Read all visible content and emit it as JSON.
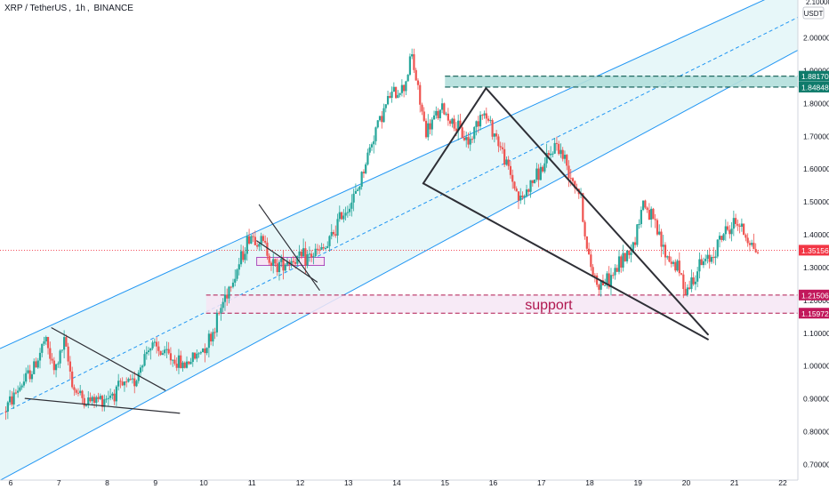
{
  "header": {
    "symbol": "XRP / TetherUS",
    "interval": "1h",
    "exchange": "BINANCE",
    "sep1": ",",
    "sep2": ","
  },
  "colors": {
    "up": "#26a69a",
    "down": "#ef5350",
    "channel": "#2196f3",
    "channel_fill": "#e3f6f8",
    "resistance_fill": "#b2dfdb",
    "resistance_border": "#0b5a51",
    "support_fill": "#f6e6f4",
    "support_border": "#b0174f",
    "pattern_line": "#2e2f36",
    "axis_text": "#131722",
    "last_price": "#f23645",
    "res_label_bg": "#0f7b6b",
    "sup_label_bg": "#c2185b"
  },
  "axis": {
    "currency": "USDT",
    "top_clip_label": "2.10000"
  },
  "labels": {
    "support": "support"
  },
  "chart_data": {
    "type": "candlestick",
    "symbol": "XRP/USDT",
    "timeframe": "1h",
    "ylim": [
      0.68,
      2.12
    ],
    "xlim": [
      5.9,
      22.3
    ],
    "y_ticks": [
      "0.70000",
      "0.80000",
      "0.90000",
      "1.00000",
      "1.10000",
      "1.20000",
      "1.30000",
      "1.40000",
      "1.50000",
      "1.60000",
      "1.70000",
      "1.80000",
      "1.90000",
      "2.00000"
    ],
    "x_ticks": [
      "6",
      "7",
      "8",
      "9",
      "10",
      "11",
      "12",
      "13",
      "14",
      "15",
      "16",
      "17",
      "18",
      "19",
      "20",
      "21",
      "22"
    ],
    "price_levels": [
      {
        "name": "resistance-top",
        "value": 1.8817,
        "label": "1.88170"
      },
      {
        "name": "resistance-bottom",
        "value": 1.84848,
        "label": "1.84848"
      },
      {
        "name": "last-price",
        "value": 1.35156,
        "label": "1.35156"
      },
      {
        "name": "support-top",
        "value": 1.21506,
        "label": "1.21506"
      },
      {
        "name": "support-bottom",
        "value": 1.15972,
        "label": "1.15972"
      }
    ],
    "anchors": [
      [
        5.9,
        0.86
      ],
      [
        6.2,
        0.93
      ],
      [
        6.55,
        1.0
      ],
      [
        6.75,
        1.08
      ],
      [
        6.95,
        0.98
      ],
      [
        7.15,
        1.07
      ],
      [
        7.35,
        0.93
      ],
      [
        7.6,
        0.89
      ],
      [
        7.95,
        0.9
      ],
      [
        8.3,
        0.93
      ],
      [
        8.6,
        0.95
      ],
      [
        8.9,
        1.06
      ],
      [
        9.3,
        1.03
      ],
      [
        9.6,
        1.0
      ],
      [
        9.9,
        1.03
      ],
      [
        10.2,
        1.09
      ],
      [
        10.5,
        1.22
      ],
      [
        10.75,
        1.3
      ],
      [
        11.0,
        1.4
      ],
      [
        11.3,
        1.37
      ],
      [
        11.5,
        1.3
      ],
      [
        11.75,
        1.32
      ],
      [
        12.2,
        1.33
      ],
      [
        12.6,
        1.36
      ],
      [
        12.9,
        1.46
      ],
      [
        13.2,
        1.52
      ],
      [
        13.6,
        1.72
      ],
      [
        13.9,
        1.82
      ],
      [
        14.2,
        1.85
      ],
      [
        14.35,
        1.95
      ],
      [
        14.5,
        1.82
      ],
      [
        14.65,
        1.71
      ],
      [
        14.85,
        1.76
      ],
      [
        15.0,
        1.78
      ],
      [
        15.3,
        1.72
      ],
      [
        15.55,
        1.68
      ],
      [
        15.8,
        1.78
      ],
      [
        16.1,
        1.7
      ],
      [
        16.35,
        1.6
      ],
      [
        16.6,
        1.5
      ],
      [
        16.9,
        1.57
      ],
      [
        17.15,
        1.62
      ],
      [
        17.35,
        1.68
      ],
      [
        17.6,
        1.6
      ],
      [
        17.85,
        1.52
      ],
      [
        18.0,
        1.33
      ],
      [
        18.2,
        1.25
      ],
      [
        18.45,
        1.26
      ],
      [
        18.7,
        1.32
      ],
      [
        18.95,
        1.37
      ],
      [
        19.15,
        1.5
      ],
      [
        19.35,
        1.44
      ],
      [
        19.6,
        1.34
      ],
      [
        19.85,
        1.3
      ],
      [
        20.05,
        1.23
      ],
      [
        20.3,
        1.3
      ],
      [
        20.55,
        1.33
      ],
      [
        20.8,
        1.4
      ],
      [
        21.1,
        1.44
      ],
      [
        21.3,
        1.39
      ],
      [
        21.5,
        1.35
      ]
    ]
  }
}
